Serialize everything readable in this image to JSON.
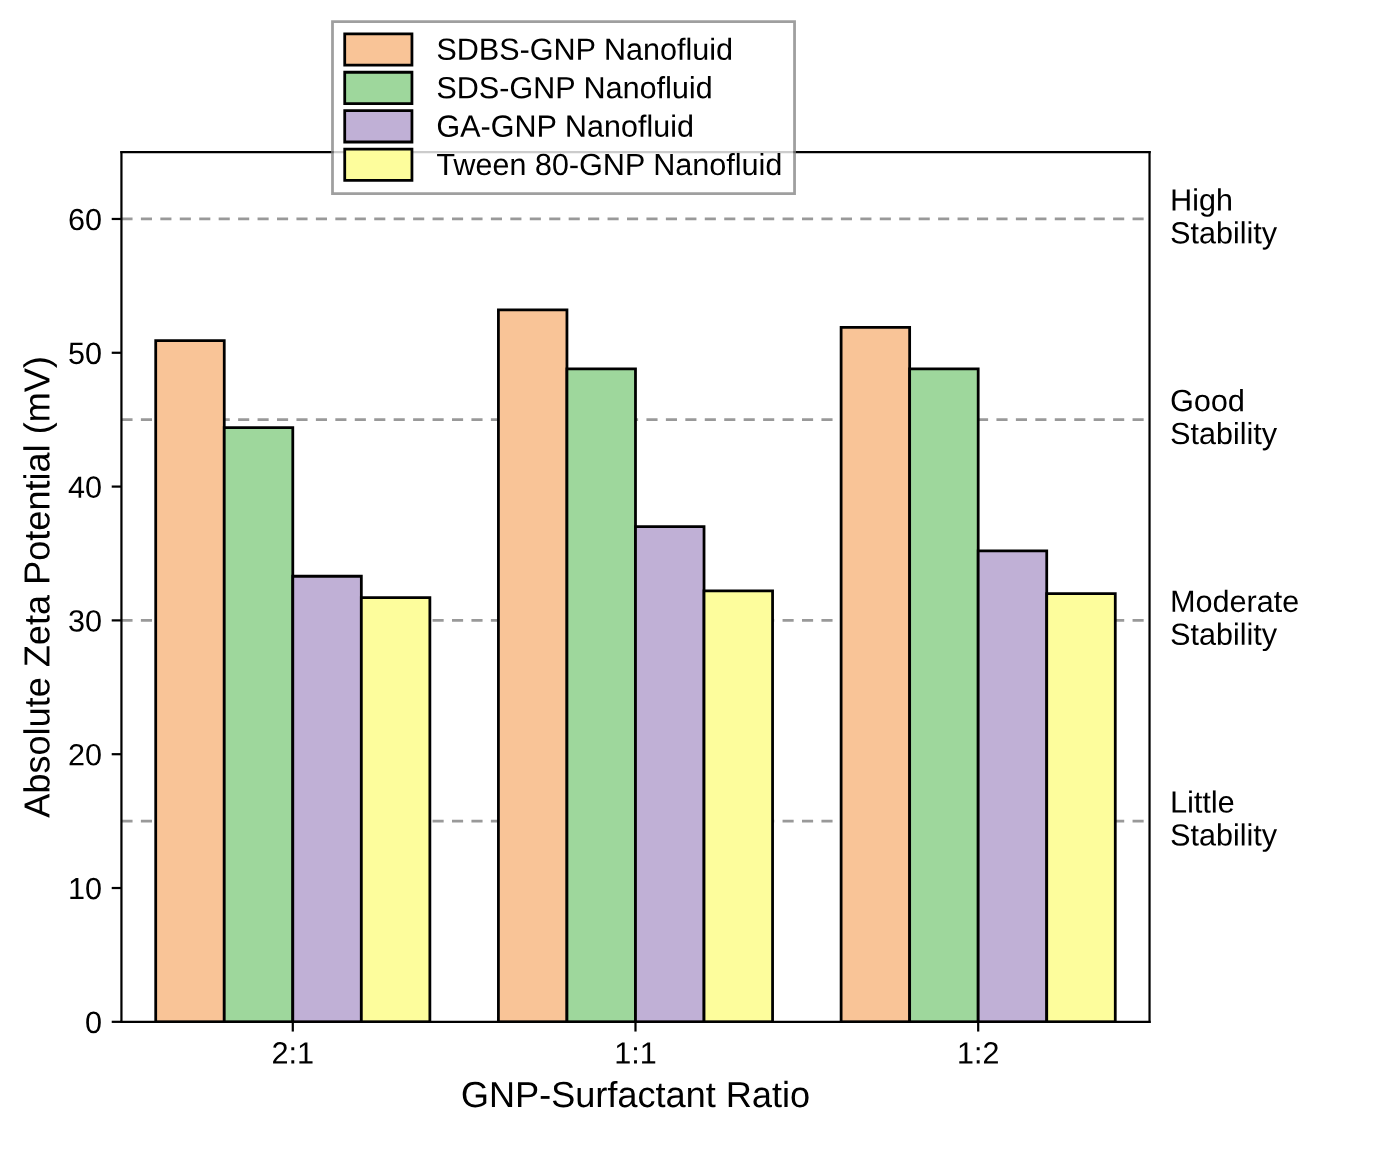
{
  "chart_data": {
    "type": "bar",
    "xlabel": "GNP-Surfactant Ratio",
    "ylabel": "Absolute Zeta Potential (mV)",
    "categories": [
      "2:1",
      "1:1",
      "1:2"
    ],
    "series": [
      {
        "name": "SDBS-GNP Nanofluid",
        "color": "#f9c497",
        "values": [
          50.9,
          53.2,
          51.9
        ]
      },
      {
        "name": "SDS-GNP Nanofluid",
        "color": "#9ed79c",
        "values": [
          44.4,
          48.8,
          48.8
        ]
      },
      {
        "name": "GA-GNP Nanofluid",
        "color": "#c0b0d6",
        "values": [
          33.3,
          37.0,
          35.2
        ]
      },
      {
        "name": "Tween 80-GNP Nanofluid",
        "color": "#fdfd9c",
        "values": [
          31.7,
          32.2,
          32.0
        ]
      }
    ],
    "ylim": [
      0,
      65
    ],
    "yticks": [
      0,
      10,
      20,
      30,
      40,
      50,
      60
    ],
    "ref_lines": [
      {
        "axis": "y",
        "value": 15,
        "label": "Little\nStability",
        "color": "#999999",
        "line_style": "dashed"
      },
      {
        "axis": "y",
        "value": 30,
        "label": "Moderate\nStability",
        "color": "#999999",
        "line_style": "dashed"
      },
      {
        "axis": "y",
        "value": 45,
        "label": "Good\nStability",
        "color": "#999999",
        "line_style": "dashed"
      },
      {
        "axis": "y",
        "value": 60,
        "label": "High\nStability",
        "color": "#999999",
        "line_style": "dashed"
      }
    ],
    "grid": false,
    "legend": "top"
  }
}
